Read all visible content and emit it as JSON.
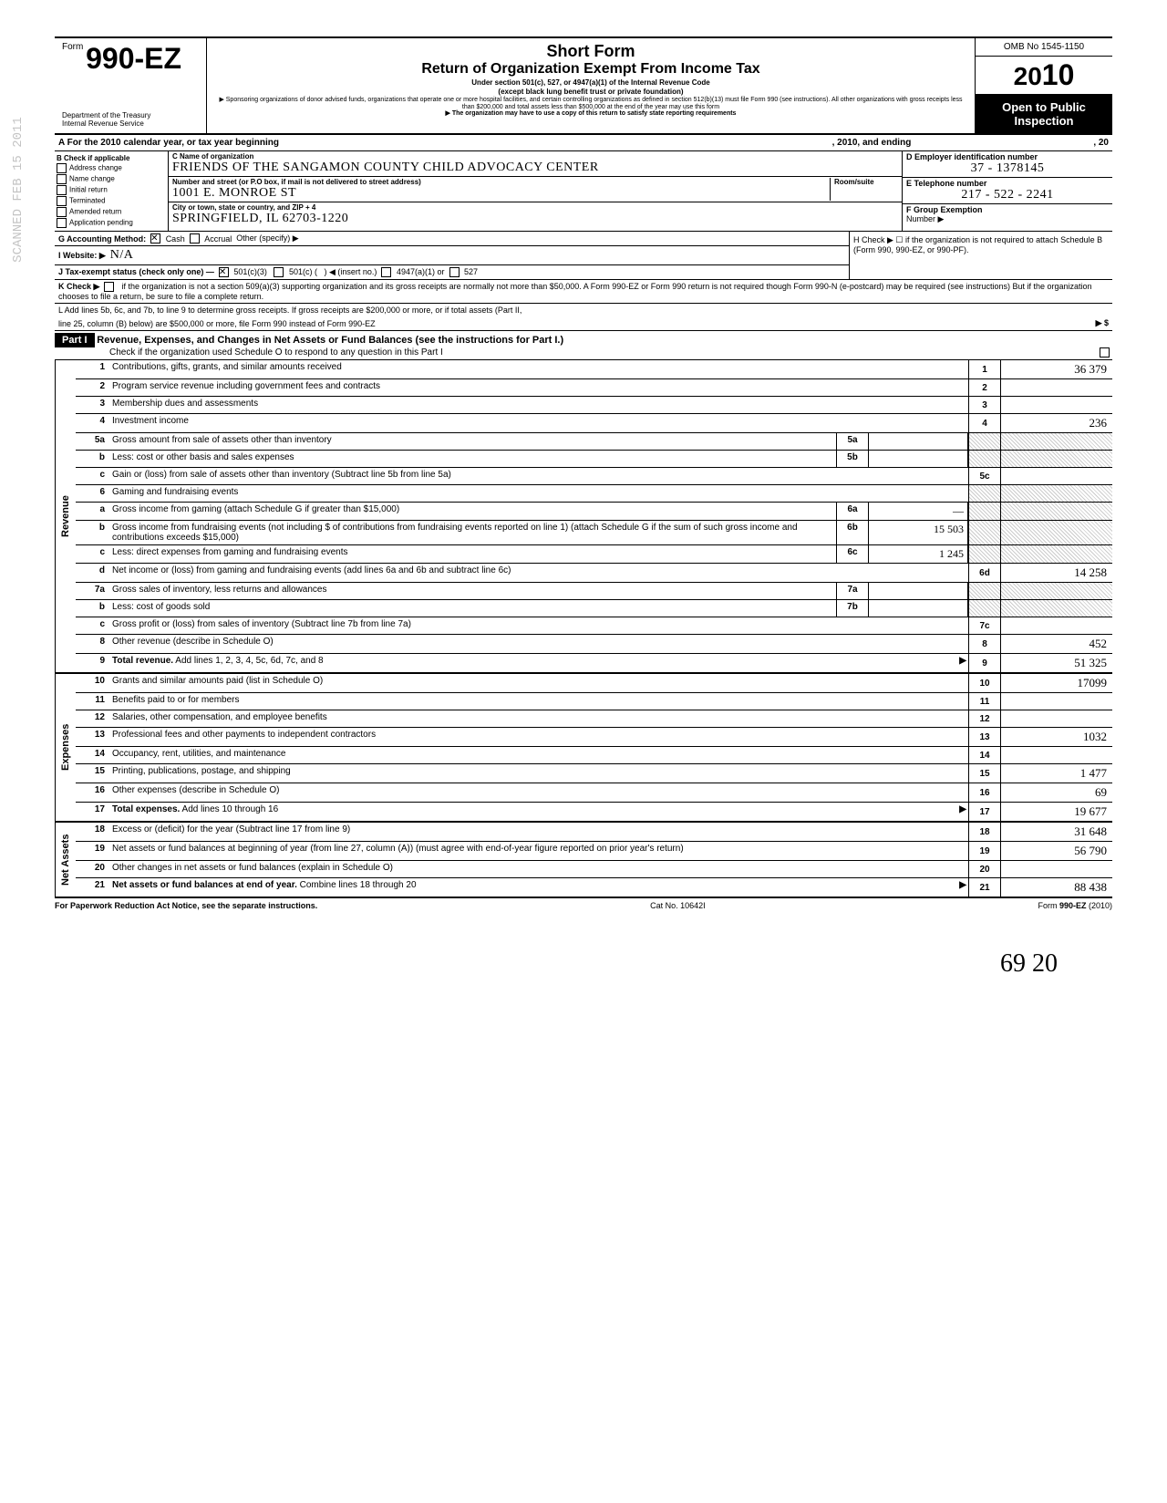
{
  "header": {
    "form_prefix": "Form",
    "form_number": "990-EZ",
    "dept1": "Department of the Treasury",
    "dept2": "Internal Revenue Service",
    "short_form": "Short Form",
    "title": "Return of Organization Exempt From Income Tax",
    "sub1": "Under section 501(c), 527, or 4947(a)(1) of the Internal Revenue Code",
    "sub2": "(except black lung benefit trust or private foundation)",
    "sub3": "▶ Sponsoring organizations of donor advised funds, organizations that operate one or more hospital facilities, and certain controlling organizations as defined in section 512(b)(13) must file Form 990 (see instructions). All other organizations with gross receipts less than $200,000 and total assets less than $500,000 at the end of the year may use this form",
    "sub4": "▶ The organization may have to use a copy of this return to satisfy state reporting requirements",
    "omb": "OMB No 1545-1150",
    "year_prefix": "20",
    "year_suffix": "10",
    "open": "Open to Public",
    "inspect": "Inspection"
  },
  "rowA": {
    "text_left": "A For the 2010 calendar year, or tax year beginning",
    "text_mid": ", 2010, and ending",
    "text_right": ", 20"
  },
  "colB": {
    "header": "B  Check if applicable",
    "items": [
      "Address change",
      "Name change",
      "Initial return",
      "Terminated",
      "Amended return",
      "Application pending"
    ]
  },
  "colC": {
    "name_label": "C Name of organization",
    "name_value": "Friends of The Sangamon County Child Advocacy Center",
    "addr_label": "Number and street (or P.O box, if mail is not delivered to street address)",
    "room_label": "Room/suite",
    "addr_value": "1001  E.  Monroe  St",
    "city_label": "City or town, state or country, and ZIP + 4",
    "city_value": "Springfield,  IL      62703-1220"
  },
  "colD": {
    "ein_label": "D Employer identification number",
    "ein_value": "37 - 1378145",
    "tel_label": "E Telephone number",
    "tel_value": "217 - 522 - 2241",
    "grp_label": "F Group Exemption",
    "grp_label2": "Number ▶"
  },
  "lineG": {
    "label": "G Accounting Method:",
    "opt1": "Cash",
    "opt2": "Accrual",
    "opt3": "Other (specify) ▶"
  },
  "lineH": {
    "text": "H Check ▶ ☐ if the organization is not required to attach Schedule B (Form 990, 990-EZ, or 990-PF)."
  },
  "lineI": {
    "label": "I  Website: ▶",
    "value": "N/A"
  },
  "lineJ": {
    "label": "J Tax-exempt status (check only one) —",
    "opt1": "501(c)(3)",
    "opt2": "501(c) (",
    "opt2b": ")  ◀ (insert no.)",
    "opt3": "4947(a)(1) or",
    "opt4": "527"
  },
  "lineK": {
    "label": "K Check ▶",
    "text": "if the organization is not a section 509(a)(3) supporting organization and its gross receipts are normally not more than $50,000. A Form 990-EZ or Form 990 return is not required though Form 990-N (e-postcard) may be required (see instructions)  But if the organization chooses to file a return, be sure to file a complete return."
  },
  "lineL": {
    "text1": "L Add lines 5b, 6c, and 7b, to line 9 to determine gross receipts. If gross receipts are $200,000 or more, or if total assets (Part II,",
    "text2": "line 25, column (B) below) are $500,000 or more, file Form 990 instead of Form 990-EZ",
    "arrow": "▶  $"
  },
  "part1": {
    "label": "Part I",
    "title": "Revenue, Expenses, and Changes in Net Assets or Fund Balances (see the instructions for Part I.)",
    "check": "Check if the organization used Schedule O to respond to any question in this Part I"
  },
  "sections": {
    "revenue": "Revenue",
    "expenses": "Expenses",
    "netassets": "Net Assets"
  },
  "rows": [
    {
      "n": "1",
      "d": "Contributions, gifts, grants, and similar amounts received",
      "rn": "1",
      "rv": "36 379"
    },
    {
      "n": "2",
      "d": "Program service revenue including government fees and contracts",
      "rn": "2",
      "rv": ""
    },
    {
      "n": "3",
      "d": "Membership dues and assessments",
      "rn": "3",
      "rv": ""
    },
    {
      "n": "4",
      "d": "Investment income",
      "rn": "4",
      "rv": "236"
    },
    {
      "n": "5a",
      "d": "Gross amount from sale of assets other than inventory",
      "mb": "5a",
      "mv": ""
    },
    {
      "n": "b",
      "d": "Less: cost or other basis and sales expenses",
      "mb": "5b",
      "mv": ""
    },
    {
      "n": "c",
      "d": "Gain or (loss) from sale of assets other than inventory (Subtract line 5b from line 5a)",
      "rn": "5c",
      "rv": ""
    },
    {
      "n": "6",
      "d": "Gaming and fundraising events"
    },
    {
      "n": "a",
      "d": "Gross income from gaming (attach Schedule G if greater than $15,000)",
      "mb": "6a",
      "mv": "—"
    },
    {
      "n": "b",
      "d": "Gross income from fundraising events (not including $                    of contributions from fundraising events reported on line 1) (attach Schedule G if the sum of such gross income and contributions exceeds $15,000)",
      "mb": "6b",
      "mv": "15 503"
    },
    {
      "n": "c",
      "d": "Less: direct expenses from gaming and fundraising events",
      "mb": "6c",
      "mv": "1 245"
    },
    {
      "n": "d",
      "d": "Net income or (loss) from gaming and fundraising events (add lines 6a and 6b and subtract line 6c)",
      "rn": "6d",
      "rv": "14 258"
    },
    {
      "n": "7a",
      "d": "Gross sales of inventory, less returns and allowances",
      "mb": "7a",
      "mv": ""
    },
    {
      "n": "b",
      "d": "Less: cost of goods sold",
      "mb": "7b",
      "mv": ""
    },
    {
      "n": "c",
      "d": "Gross profit or (loss) from sales of inventory (Subtract line 7b from line 7a)",
      "rn": "7c",
      "rv": ""
    },
    {
      "n": "8",
      "d": "Other revenue (describe in Schedule O)",
      "rn": "8",
      "rv": "452"
    },
    {
      "n": "9",
      "d": "Total revenue. Add lines 1, 2, 3, 4, 5c, 6d, 7c, and 8",
      "rn": "9",
      "rv": "51 325",
      "bold": true,
      "arrow": true
    }
  ],
  "exp_rows": [
    {
      "n": "10",
      "d": "Grants and similar amounts paid (list in Schedule O)",
      "rn": "10",
      "rv": "17099"
    },
    {
      "n": "11",
      "d": "Benefits paid to or for members",
      "rn": "11",
      "rv": ""
    },
    {
      "n": "12",
      "d": "Salaries, other compensation, and employee benefits",
      "rn": "12",
      "rv": ""
    },
    {
      "n": "13",
      "d": "Professional fees and other payments to independent contractors",
      "rn": "13",
      "rv": "1032"
    },
    {
      "n": "14",
      "d": "Occupancy, rent, utilities, and maintenance",
      "rn": "14",
      "rv": ""
    },
    {
      "n": "15",
      "d": "Printing, publications, postage, and shipping",
      "rn": "15",
      "rv": "1 477"
    },
    {
      "n": "16",
      "d": "Other expenses (describe in Schedule O)",
      "rn": "16",
      "rv": "69"
    },
    {
      "n": "17",
      "d": "Total expenses. Add lines 10 through 16",
      "rn": "17",
      "rv": "19 677",
      "bold": true,
      "arrow": true
    }
  ],
  "na_rows": [
    {
      "n": "18",
      "d": "Excess or (deficit) for the year (Subtract line 17 from line 9)",
      "rn": "18",
      "rv": "31 648"
    },
    {
      "n": "19",
      "d": "Net assets or fund balances at beginning of year (from line 27, column (A)) (must agree with end-of-year figure reported on prior year's return)",
      "rn": "19",
      "rv": "56 790"
    },
    {
      "n": "20",
      "d": "Other changes in net assets or fund balances (explain in Schedule O)",
      "rn": "20",
      "rv": ""
    },
    {
      "n": "21",
      "d": "Net assets or fund balances at end of year. Combine lines 18 through 20",
      "rn": "21",
      "rv": "88 438",
      "bold": true,
      "arrow": true
    }
  ],
  "footer": {
    "left": "For Paperwork Reduction Act Notice, see the separate instructions.",
    "mid": "Cat No. 10642I",
    "right": "Form 990-EZ (2010)"
  },
  "scrawl": "69        20",
  "stamp": "SCANNED FEB 15 2011"
}
